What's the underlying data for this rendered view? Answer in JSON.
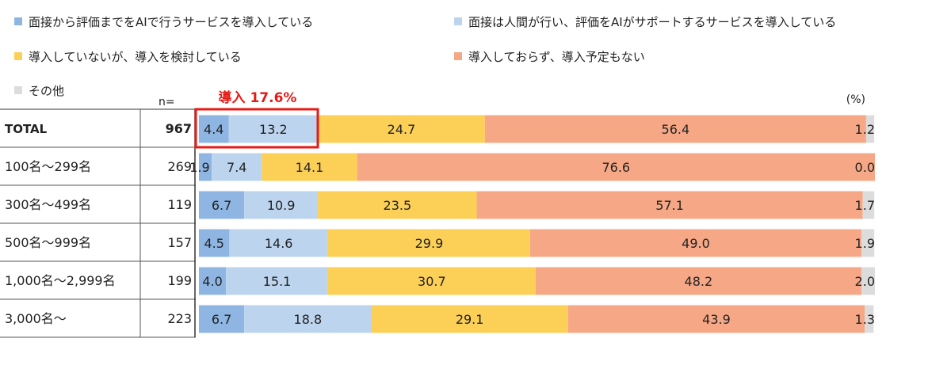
{
  "colors": {
    "seg1": "#8fb6e3",
    "seg2": "#bcd4ee",
    "seg3": "#fcd057",
    "seg4": "#f6a886",
    "seg5": "#dcdcdc",
    "highlight": "#e41b17"
  },
  "n_label": "n=",
  "unit_label": "(%)",
  "highlight_label": "導入 17.6%",
  "chart_data": {
    "type": "bar",
    "orientation": "horizontal-stacked-100",
    "categories": [
      "TOTAL",
      "100名～299名",
      "300名～499名",
      "500名～999名",
      "1,000名～2,999名",
      "3,000名～"
    ],
    "n": [
      967,
      269,
      119,
      157,
      199,
      223
    ],
    "series": [
      {
        "name": "面接から評価までをAIで行うサービスを導入している",
        "values": [
          4.4,
          1.9,
          6.7,
          4.5,
          4.0,
          6.7
        ]
      },
      {
        "name": "面接は人間が行い、評価をAIがサポートするサービスを導入している",
        "values": [
          13.2,
          7.4,
          10.9,
          14.6,
          15.1,
          18.8
        ]
      },
      {
        "name": "導入していないが、導入を検討している",
        "values": [
          24.7,
          14.1,
          23.5,
          29.9,
          30.7,
          29.1
        ]
      },
      {
        "name": "導入しておらず、導入予定もない",
        "values": [
          56.4,
          76.6,
          57.1,
          49.0,
          48.2,
          43.9
        ]
      },
      {
        "name": "その他",
        "values": [
          1.2,
          0.0,
          1.7,
          1.9,
          2.0,
          1.3
        ]
      }
    ],
    "xlim": [
      0,
      100
    ],
    "legend": "top"
  }
}
